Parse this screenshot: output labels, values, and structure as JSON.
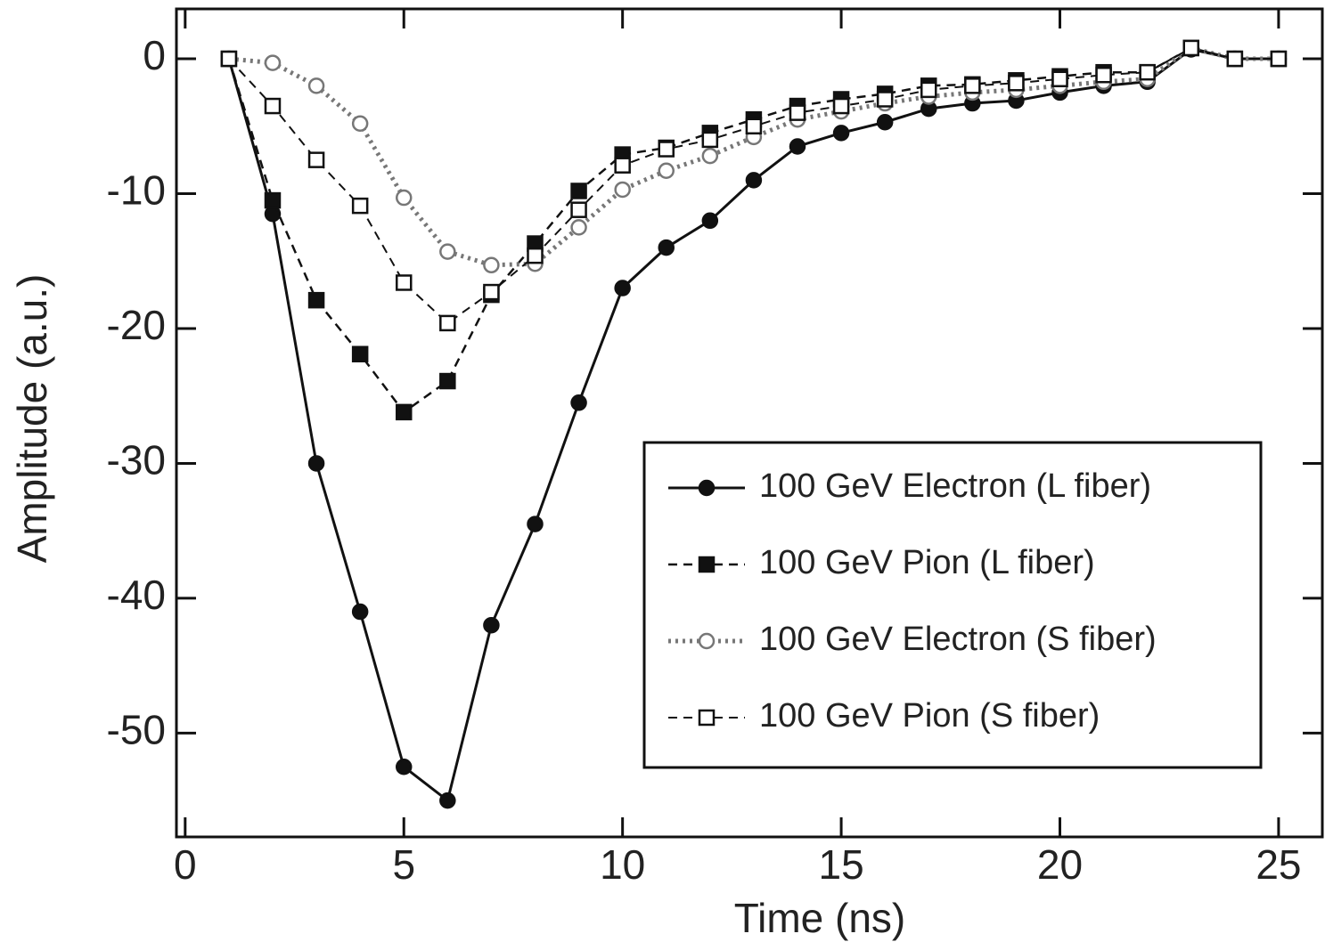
{
  "chart_data": {
    "type": "line",
    "x_label": "Time (ns)",
    "y_label": "Amplitude (a.u.)",
    "x": [
      1,
      2,
      3,
      4,
      5,
      6,
      7,
      8,
      9,
      10,
      11,
      12,
      13,
      14,
      15,
      16,
      17,
      18,
      19,
      20,
      21,
      22,
      23,
      24,
      25
    ],
    "series": [
      {
        "name": "100 GeV Electron (L fiber)",
        "color": "#111111",
        "line_style": "solid",
        "width": 3,
        "marker": "circle",
        "filled": true,
        "values": [
          0,
          -11.5,
          -30,
          -41,
          -52.5,
          -55,
          -42,
          -34.5,
          -25.5,
          -17,
          -14,
          -12,
          -9,
          -6.5,
          -5.5,
          -4.7,
          -3.7,
          -3.3,
          -3.1,
          -2.5,
          -2,
          -1.7,
          0.7,
          0,
          0
        ]
      },
      {
        "name": "100 GeV Pion (L fiber)",
        "color": "#111111",
        "line_style": "dashed",
        "width": 2.5,
        "marker": "square",
        "filled": true,
        "values": [
          0,
          -10.5,
          -17.9,
          -21.9,
          -26.2,
          -23.9,
          -17.5,
          -13.7,
          -9.8,
          -7.1,
          -6.6,
          -5.5,
          -4.5,
          -3.5,
          -3,
          -2.6,
          -2,
          -1.9,
          -1.6,
          -1.3,
          -1,
          -1,
          0.8,
          0,
          0
        ]
      },
      {
        "name": "100 GeV Electron (S fiber)",
        "color": "#777777",
        "line_style": "dotted",
        "width": 5,
        "marker": "circle",
        "filled": false,
        "values": [
          0,
          -0.3,
          -2,
          -4.8,
          -10.3,
          -14.3,
          -15.3,
          -15.2,
          -12.5,
          -9.7,
          -8.3,
          -7.2,
          -5.8,
          -4.5,
          -3.9,
          -3.3,
          -2.8,
          -2.5,
          -2.3,
          -2,
          -1.7,
          -1.5,
          0.8,
          0,
          0
        ]
      },
      {
        "name": "100 GeV Pion (S fiber)",
        "color": "#111111",
        "line_style": "dashed",
        "width": 2,
        "marker": "square",
        "filled": false,
        "values": [
          0,
          -3.5,
          -7.5,
          -10.9,
          -16.6,
          -19.6,
          -17.3,
          -14.6,
          -11.2,
          -7.9,
          -6.7,
          -6,
          -5,
          -4,
          -3.5,
          -3,
          -2.3,
          -2,
          -1.8,
          -1.5,
          -1.2,
          -1,
          0.8,
          0,
          0
        ]
      }
    ],
    "xlim": [
      -0.2,
      26
    ],
    "ylim": [
      -57.7,
      3.7
    ],
    "xticks": [
      0,
      5,
      10,
      15,
      20,
      25
    ],
    "yticks": [
      0,
      -10,
      -20,
      -30,
      -40,
      -50
    ],
    "legend": "lower right"
  }
}
